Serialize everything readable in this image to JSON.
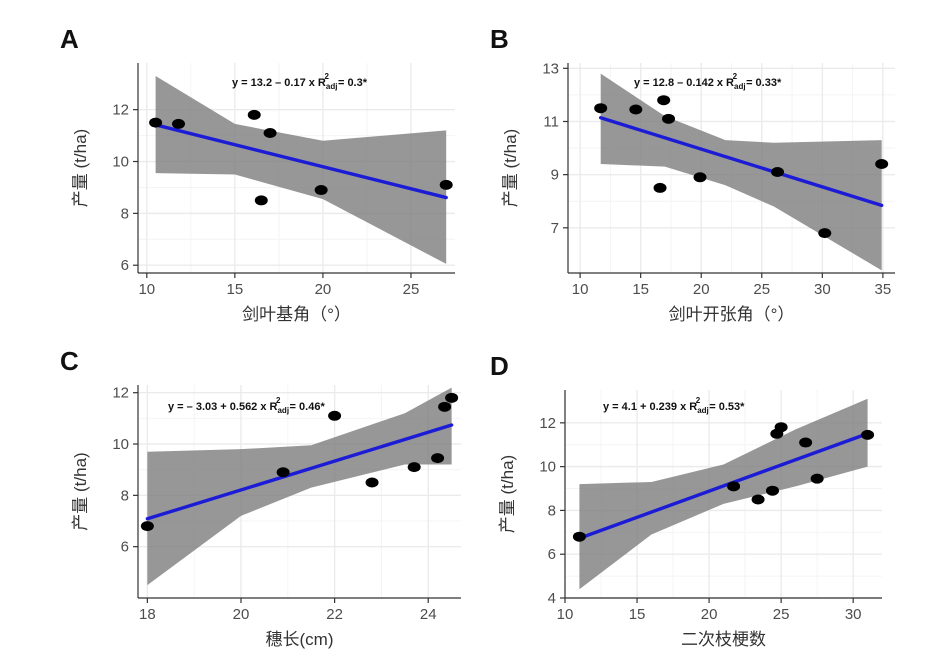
{
  "chart_data": [
    {
      "type": "scatter",
      "panel": "A",
      "xlabel": "剑叶基角（°）",
      "ylabel": "产量 (t/ha)",
      "xlim": [
        9.5,
        27.5
      ],
      "ylim": [
        5.7,
        13.8
      ],
      "xticks": [
        10,
        15,
        20,
        25
      ],
      "yticks": [
        6,
        8,
        10,
        12
      ],
      "points": [
        [
          10.5,
          11.5
        ],
        [
          11.8,
          11.45
        ],
        [
          16.1,
          11.8
        ],
        [
          16.5,
          8.5
        ],
        [
          17,
          11.1
        ],
        [
          19.9,
          8.9
        ],
        [
          27,
          9.1
        ]
      ],
      "fit": {
        "intercept": 13.2,
        "slope": -0.17,
        "x_range": [
          10.5,
          27
        ]
      },
      "band": {
        "x": [
          10.5,
          15,
          20,
          27
        ],
        "lower": [
          9.55,
          9.5,
          8.55,
          6.05
        ],
        "upper": [
          13.3,
          11.45,
          10.8,
          11.2
        ]
      },
      "equation": {
        "lead": "y = 13.2 – 0.17 x R",
        "sub": "adj",
        "sup": "2",
        "tail": " = 0.3*"
      }
    },
    {
      "type": "scatter",
      "panel": "B",
      "xlabel": "剑叶开张角（°）",
      "ylabel": "产量 (t/ha)",
      "xlim": [
        9,
        36
      ],
      "ylim": [
        5.3,
        13.2
      ],
      "xticks": [
        10,
        15,
        20,
        25,
        30,
        35
      ],
      "yticks": [
        7,
        9,
        11,
        13
      ],
      "points": [
        [
          11.7,
          11.5
        ],
        [
          14.6,
          11.45
        ],
        [
          16.6,
          8.5
        ],
        [
          16.9,
          11.8
        ],
        [
          17.3,
          11.1
        ],
        [
          19.9,
          8.9
        ],
        [
          26.3,
          9.1
        ],
        [
          30.2,
          6.8
        ],
        [
          34.9,
          9.4
        ]
      ],
      "fit": {
        "intercept": 12.8,
        "slope": -0.142,
        "x_range": [
          11.7,
          34.9
        ]
      },
      "band": {
        "x": [
          11.7,
          17,
          22,
          26,
          34.9
        ],
        "lower": [
          9.4,
          9.3,
          8.6,
          7.8,
          5.4
        ],
        "upper": [
          12.8,
          11.2,
          10.3,
          10.2,
          10.3
        ]
      },
      "equation": {
        "lead": "y = 12.8 – 0.142 x R",
        "sub": "adj",
        "sup": "2",
        "tail": " = 0.33*"
      }
    },
    {
      "type": "scatter",
      "panel": "C",
      "xlabel": "穗长(cm)",
      "ylabel": "产量 (t/ha)",
      "xlim": [
        17.8,
        24.7
      ],
      "ylim": [
        4.0,
        12.3
      ],
      "xticks": [
        18,
        20,
        22,
        24
      ],
      "yticks": [
        6,
        8,
        10,
        12
      ],
      "points": [
        [
          18,
          6.8
        ],
        [
          20.9,
          8.9
        ],
        [
          22,
          11.1
        ],
        [
          22.8,
          8.5
        ],
        [
          23.7,
          9.1
        ],
        [
          24.2,
          9.45
        ],
        [
          24.35,
          11.45
        ],
        [
          24.5,
          11.8
        ]
      ],
      "fit": {
        "intercept": -3.03,
        "slope": 0.562,
        "x_range": [
          18,
          24.5
        ]
      },
      "band": {
        "x": [
          18,
          20,
          21.5,
          23.5,
          24.5
        ],
        "lower": [
          4.5,
          7.2,
          8.3,
          9.2,
          9.2
        ],
        "upper": [
          9.7,
          9.8,
          9.95,
          11.2,
          12.2
        ]
      },
      "equation": {
        "lead": "y = – 3.03 + 0.562 x R",
        "sub": "adj",
        "sup": "2",
        "tail": " = 0.46*"
      }
    },
    {
      "type": "scatter",
      "panel": "D",
      "xlabel": "二次枝梗数",
      "ylabel": "产量 (t/ha)",
      "xlim": [
        10,
        32
      ],
      "ylim": [
        4,
        13.5
      ],
      "xticks": [
        10,
        15,
        20,
        25,
        30
      ],
      "yticks": [
        4,
        6,
        8,
        10,
        12
      ],
      "points": [
        [
          11,
          6.8
        ],
        [
          21.7,
          9.1
        ],
        [
          23.4,
          8.5
        ],
        [
          24.4,
          8.9
        ],
        [
          24.7,
          11.5
        ],
        [
          25,
          11.8
        ],
        [
          26.7,
          11.1
        ],
        [
          27.5,
          9.45
        ],
        [
          31,
          11.45
        ]
      ],
      "fit": {
        "intercept": 4.1,
        "slope": 0.239,
        "x_range": [
          11,
          31
        ]
      },
      "band": {
        "x": [
          11,
          16,
          21,
          26,
          31
        ],
        "lower": [
          4.4,
          6.9,
          8.3,
          9.1,
          10.0
        ],
        "upper": [
          9.2,
          9.3,
          10.1,
          11.7,
          13.1
        ]
      },
      "equation": {
        "lead": "y = 4.1 + 0.239 x R",
        "sub": "adj",
        "sup": "2",
        "tail": " = 0.53*"
      }
    }
  ],
  "colors": {
    "panel_bg": "#ffffff",
    "grid_major": "#ebebeb",
    "grid_minor": "#f4f4f4",
    "axis": "#333333",
    "band": "#7a7a7a",
    "fit_line": "#1c1cd6",
    "point": "#000000"
  }
}
